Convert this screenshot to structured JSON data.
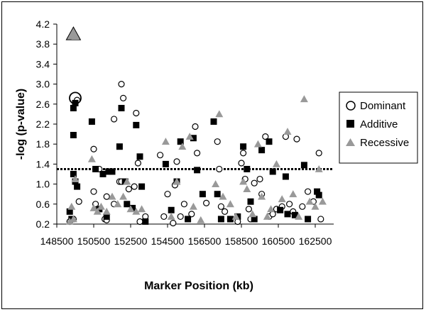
{
  "chart_data": {
    "type": "scatter",
    "title": "",
    "xlabel": "Marker Position (kb)",
    "ylabel": "-log (p-value)",
    "xlim": [
      148500,
      163500
    ],
    "ylim": [
      0.2,
      4.2
    ],
    "x_ticks": [
      148500,
      150500,
      152500,
      154500,
      156500,
      158500,
      160500,
      162500
    ],
    "y_ticks": [
      "0.2",
      "0.6",
      "1.0",
      "1.4",
      "1.8",
      "2.2",
      "2.6",
      "3.0",
      "3.4",
      "3.8",
      "4.2"
    ],
    "threshold": 1.3,
    "grid": false,
    "legend_position": "right",
    "series": [
      {
        "name": "Dominant",
        "marker": "open-circle",
        "points": [
          [
            149500,
            2.72
          ],
          [
            149600,
            2.68
          ],
          [
            149700,
            0.65
          ],
          [
            149400,
            0.3
          ],
          [
            149200,
            0.25
          ],
          [
            150500,
            1.7
          ],
          [
            150500,
            0.85
          ],
          [
            150600,
            0.6
          ],
          [
            150800,
            1.3
          ],
          [
            151100,
            0.3
          ],
          [
            151200,
            0.75
          ],
          [
            151200,
            0.28
          ],
          [
            151600,
            2.3
          ],
          [
            151600,
            0.6
          ],
          [
            151900,
            1.05
          ],
          [
            152000,
            3.0
          ],
          [
            152100,
            2.72
          ],
          [
            152000,
            1.05
          ],
          [
            152400,
            0.9
          ],
          [
            152700,
            0.95
          ],
          [
            152800,
            2.42
          ],
          [
            152900,
            1.42
          ],
          [
            153000,
            0.25
          ],
          [
            153300,
            0.35
          ],
          [
            154100,
            1.58
          ],
          [
            154300,
            0.35
          ],
          [
            154500,
            0.8
          ],
          [
            154800,
            0.22
          ],
          [
            154900,
            0.98
          ],
          [
            155000,
            1.45
          ],
          [
            155200,
            0.35
          ],
          [
            155400,
            0.6
          ],
          [
            155800,
            0.4
          ],
          [
            156000,
            2.15
          ],
          [
            156100,
            1.62
          ],
          [
            156600,
            0.62
          ],
          [
            157200,
            1.85
          ],
          [
            157300,
            1.3
          ],
          [
            157400,
            0.55
          ],
          [
            157600,
            0.45
          ],
          [
            157900,
            0.3
          ],
          [
            158300,
            0.25
          ],
          [
            158500,
            1.42
          ],
          [
            158600,
            1.62
          ],
          [
            158700,
            1.1
          ],
          [
            158900,
            0.5
          ],
          [
            159000,
            0.3
          ],
          [
            159200,
            1.02
          ],
          [
            159500,
            1.1
          ],
          [
            159600,
            0.8
          ],
          [
            159800,
            1.95
          ],
          [
            160000,
            0.35
          ],
          [
            160200,
            0.4
          ],
          [
            160400,
            0.5
          ],
          [
            160700,
            0.55
          ],
          [
            160900,
            1.95
          ],
          [
            161100,
            0.6
          ],
          [
            161300,
            0.45
          ],
          [
            161500,
            1.9
          ],
          [
            161800,
            0.55
          ],
          [
            162100,
            0.85
          ],
          [
            162400,
            0.65
          ],
          [
            162700,
            1.62
          ],
          [
            162800,
            0.3
          ]
        ]
      },
      {
        "name": "Additive",
        "marker": "filled-square",
        "points": [
          [
            149500,
            2.62
          ],
          [
            149400,
            2.52
          ],
          [
            149400,
            1.98
          ],
          [
            149400,
            1.2
          ],
          [
            149500,
            1.05
          ],
          [
            149600,
            0.95
          ],
          [
            149200,
            0.45
          ],
          [
            149300,
            0.3
          ],
          [
            150400,
            2.25
          ],
          [
            150600,
            1.3
          ],
          [
            150800,
            0.5
          ],
          [
            151000,
            1.2
          ],
          [
            151200,
            0.35
          ],
          [
            151300,
            1.25
          ],
          [
            151500,
            1.25
          ],
          [
            151900,
            1.75
          ],
          [
            152000,
            2.52
          ],
          [
            152200,
            1.05
          ],
          [
            152300,
            0.6
          ],
          [
            152600,
            0.52
          ],
          [
            152800,
            2.18
          ],
          [
            153000,
            1.55
          ],
          [
            153100,
            0.95
          ],
          [
            153300,
            0.25
          ],
          [
            154400,
            1.4
          ],
          [
            154700,
            0.48
          ],
          [
            155000,
            1.05
          ],
          [
            155200,
            1.85
          ],
          [
            155600,
            0.3
          ],
          [
            155900,
            1.92
          ],
          [
            156100,
            1.28
          ],
          [
            156400,
            0.8
          ],
          [
            157000,
            2.25
          ],
          [
            157200,
            0.8
          ],
          [
            157400,
            0.3
          ],
          [
            157900,
            0.3
          ],
          [
            158300,
            0.35
          ],
          [
            158600,
            1.75
          ],
          [
            158800,
            1.3
          ],
          [
            159000,
            0.65
          ],
          [
            159200,
            0.3
          ],
          [
            159600,
            1.68
          ],
          [
            160000,
            1.85
          ],
          [
            160200,
            1.25
          ],
          [
            160600,
            0.48
          ],
          [
            160900,
            1.15
          ],
          [
            161000,
            0.4
          ],
          [
            161400,
            0.38
          ],
          [
            161900,
            1.38
          ],
          [
            162100,
            0.3
          ],
          [
            162600,
            0.85
          ],
          [
            162700,
            0.78
          ]
        ]
      },
      {
        "name": "Recessive",
        "marker": "filled-triangle",
        "points": [
          [
            149400,
            4.0
          ],
          [
            149500,
            3.95
          ],
          [
            149300,
            0.55
          ],
          [
            149500,
            1.1
          ],
          [
            149200,
            0.25
          ],
          [
            149400,
            0.3
          ],
          [
            150400,
            1.5
          ],
          [
            150500,
            0.52
          ],
          [
            150700,
            0.45
          ],
          [
            150900,
            0.55
          ],
          [
            151200,
            0.45
          ],
          [
            151500,
            0.75
          ],
          [
            151800,
            0.6
          ],
          [
            152100,
            0.75
          ],
          [
            152300,
            1.05
          ],
          [
            152500,
            0.5
          ],
          [
            152800,
            0.45
          ],
          [
            153100,
            0.5
          ],
          [
            154400,
            1.85
          ],
          [
            154700,
            0.35
          ],
          [
            155000,
            1.05
          ],
          [
            155300,
            1.75
          ],
          [
            155700,
            1.95
          ],
          [
            155900,
            0.55
          ],
          [
            156300,
            0.28
          ],
          [
            157100,
            1.0
          ],
          [
            157300,
            2.4
          ],
          [
            157500,
            0.75
          ],
          [
            157900,
            0.6
          ],
          [
            158200,
            0.35
          ],
          [
            158600,
            1.05
          ],
          [
            158800,
            0.9
          ],
          [
            159100,
            0.4
          ],
          [
            159400,
            1.8
          ],
          [
            159600,
            0.75
          ],
          [
            159900,
            0.35
          ],
          [
            160100,
            0.5
          ],
          [
            160400,
            1.4
          ],
          [
            160700,
            0.7
          ],
          [
            161000,
            2.05
          ],
          [
            161300,
            0.8
          ],
          [
            161600,
            0.35
          ],
          [
            161900,
            2.7
          ],
          [
            162200,
            0.65
          ],
          [
            162500,
            0.55
          ],
          [
            162700,
            1.3
          ],
          [
            162900,
            0.65
          ]
        ]
      }
    ]
  }
}
